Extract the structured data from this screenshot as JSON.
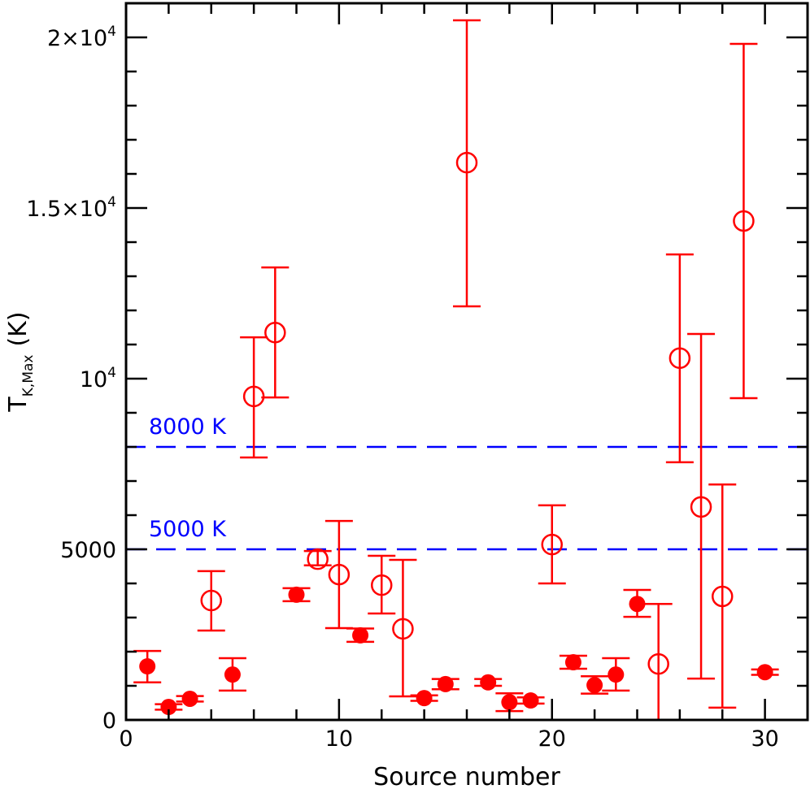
{
  "chart_data": {
    "type": "scatter",
    "title": "",
    "xlabel": "Source number",
    "ylabel": "T",
    "ylabel_subscript": "K,Max",
    "ylabel_unit": "(K)",
    "xlim": [
      0,
      32
    ],
    "ylim": [
      0,
      21000
    ],
    "grid": false,
    "legend": "none",
    "x_ticks": [
      {
        "v": 0,
        "label": "0"
      },
      {
        "v": 10,
        "label": "10"
      },
      {
        "v": 20,
        "label": "20"
      },
      {
        "v": 30,
        "label": "30"
      }
    ],
    "y_ticks": [
      {
        "v": 0,
        "label": "0",
        "sup": ""
      },
      {
        "v": 5000,
        "label": "5000",
        "sup": ""
      },
      {
        "v": 10000,
        "label": "10",
        "sup": "4"
      },
      {
        "v": 15000,
        "label": "1.5×10",
        "sup": "4"
      },
      {
        "v": 20000,
        "label": "2×10",
        "sup": "4"
      }
    ],
    "reference_lines": [
      {
        "y": 8000,
        "label": "8000 K",
        "color": "#0000ff",
        "style": "dashed"
      },
      {
        "y": 5000,
        "label": "5000 K",
        "color": "#0000ff",
        "style": "dashed"
      }
    ],
    "marker_color": "#ff0000",
    "points": [
      {
        "x": 1,
        "y": 1570,
        "lo": 1100,
        "hi": 2020,
        "filled": true
      },
      {
        "x": 2,
        "y": 380,
        "lo": 300,
        "hi": 460,
        "filled": true
      },
      {
        "x": 3,
        "y": 620,
        "lo": 540,
        "hi": 700,
        "filled": true
      },
      {
        "x": 4,
        "y": 3500,
        "lo": 2620,
        "hi": 4360,
        "filled": false
      },
      {
        "x": 5,
        "y": 1330,
        "lo": 860,
        "hi": 1810,
        "filled": true
      },
      {
        "x": 6,
        "y": 9480,
        "lo": 7690,
        "hi": 11210,
        "filled": false
      },
      {
        "x": 7,
        "y": 11350,
        "lo": 9450,
        "hi": 13260,
        "filled": false
      },
      {
        "x": 8,
        "y": 3670,
        "lo": 3480,
        "hi": 3860,
        "filled": true
      },
      {
        "x": 9,
        "y": 4710,
        "lo": 4530,
        "hi": 4950,
        "filled": false
      },
      {
        "x": 10,
        "y": 4260,
        "lo": 2690,
        "hi": 5830,
        "filled": false
      },
      {
        "x": 11,
        "y": 2480,
        "lo": 2290,
        "hi": 2680,
        "filled": true
      },
      {
        "x": 12,
        "y": 3950,
        "lo": 3120,
        "hi": 4810,
        "filled": false
      },
      {
        "x": 13,
        "y": 2670,
        "lo": 690,
        "hi": 4690,
        "filled": false
      },
      {
        "x": 14,
        "y": 640,
        "lo": 560,
        "hi": 720,
        "filled": true
      },
      {
        "x": 15,
        "y": 1050,
        "lo": 900,
        "hi": 1200,
        "filled": true
      },
      {
        "x": 16,
        "y": 16330,
        "lo": 12120,
        "hi": 20500,
        "filled": false
      },
      {
        "x": 17,
        "y": 1100,
        "lo": 1000,
        "hi": 1200,
        "filled": true
      },
      {
        "x": 18,
        "y": 520,
        "lo": 260,
        "hi": 780,
        "filled": true
      },
      {
        "x": 19,
        "y": 570,
        "lo": 480,
        "hi": 660,
        "filled": true
      },
      {
        "x": 20,
        "y": 5140,
        "lo": 4000,
        "hi": 6290,
        "filled": false
      },
      {
        "x": 21,
        "y": 1690,
        "lo": 1500,
        "hi": 1880,
        "filled": true
      },
      {
        "x": 22,
        "y": 1020,
        "lo": 770,
        "hi": 1280,
        "filled": true
      },
      {
        "x": 23,
        "y": 1330,
        "lo": 860,
        "hi": 1810,
        "filled": true
      },
      {
        "x": 24,
        "y": 3400,
        "lo": 3020,
        "hi": 3810,
        "filled": true
      },
      {
        "x": 25,
        "y": 1640,
        "lo": 0,
        "hi": 3400,
        "filled": false
      },
      {
        "x": 26,
        "y": 10600,
        "lo": 7550,
        "hi": 13640,
        "filled": false
      },
      {
        "x": 27,
        "y": 6240,
        "lo": 1210,
        "hi": 11310,
        "filled": false
      },
      {
        "x": 28,
        "y": 3620,
        "lo": 360,
        "hi": 6900,
        "filled": false
      },
      {
        "x": 29,
        "y": 14620,
        "lo": 9430,
        "hi": 19810,
        "filled": false
      },
      {
        "x": 30,
        "y": 1400,
        "lo": 1320,
        "hi": 1480,
        "filled": true
      }
    ]
  }
}
